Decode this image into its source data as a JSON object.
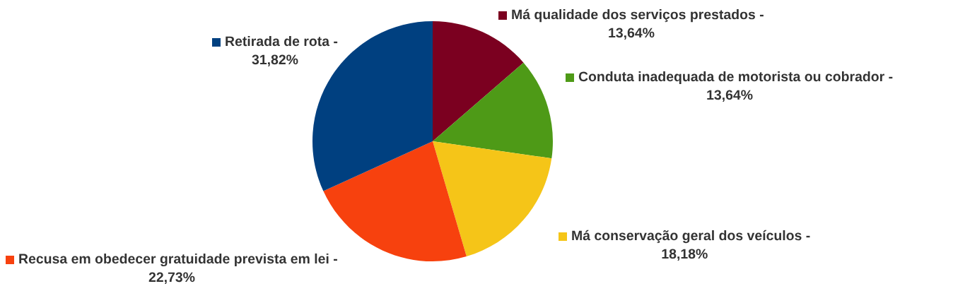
{
  "chart_data": {
    "type": "pie",
    "categories": [
      "Má qualidade dos serviços prestados -",
      "Conduta inadequada de motorista ou cobrador -",
      "Má conservação geral dos veículos -",
      "Recusa em obedecer gratuidade prevista em lei -",
      "Retirada de rota -"
    ],
    "values": [
      13.64,
      13.64,
      18.18,
      22.73,
      31.82
    ],
    "value_labels": [
      "13,64%",
      "13,64%",
      "18,18%",
      "22,73%",
      "31,82%"
    ],
    "colors": [
      "#7b0020",
      "#4e9a17",
      "#f5c518",
      "#f7410e",
      "#004080"
    ],
    "legend": "right"
  }
}
